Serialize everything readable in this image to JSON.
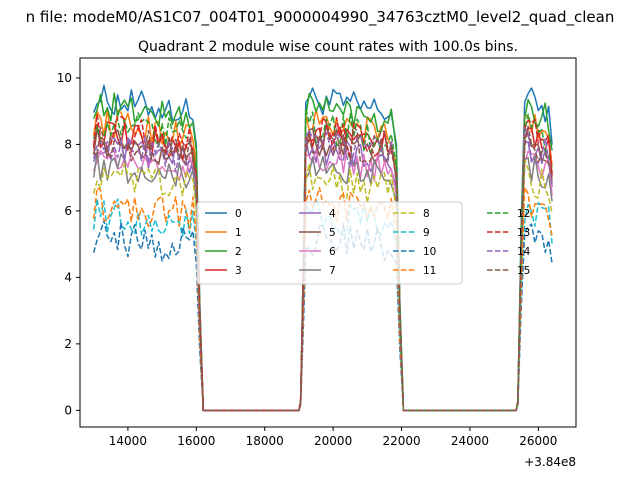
{
  "chart_data": {
    "type": "line",
    "suptitle": "n file: modeM0/AS1C07_004T01_9000004990_34763cztM0_level2_quad_clean",
    "title": "Quadrant 2 module wise count rates with 100.0s bins.",
    "xlabel": "",
    "ylabel": "",
    "x_offset_label": "+3.84e8",
    "xlim": [
      12600,
      27100
    ],
    "ylim": [
      -0.5,
      10.6
    ],
    "xticks": [
      14000,
      16000,
      18000,
      20000,
      22000,
      24000,
      26000
    ],
    "xtick_labels": [
      "14000",
      "16000",
      "18000",
      "20000",
      "22000",
      "24000",
      "26000"
    ],
    "yticks": [
      0,
      2,
      4,
      6,
      8,
      10
    ],
    "ytick_labels": [
      "0",
      "2",
      "4",
      "6",
      "8",
      "10"
    ],
    "grid": false,
    "legend_location": "center",
    "legend_columns": 4,
    "segments": [
      {
        "state": "on",
        "x_start": 13000,
        "x_end": 15900
      },
      {
        "state": "decay",
        "x": [
          16000,
          16100,
          16200
        ]
      },
      {
        "state": "off",
        "x_start": 16200,
        "x_end": 19000,
        "value": 0
      },
      {
        "state": "rise",
        "x": [
          19050,
          19150
        ]
      },
      {
        "state": "on",
        "x_start": 19200,
        "x_end": 21750
      },
      {
        "state": "decay",
        "x": [
          21850,
          21950,
          22050
        ]
      },
      {
        "state": "off",
        "x_start": 22050,
        "x_end": 25350,
        "value": 0
      },
      {
        "state": "rise",
        "x": [
          25400,
          25500
        ]
      },
      {
        "state": "on",
        "x_start": 25600,
        "x_end": 26350
      },
      {
        "state": "decay",
        "x": [
          26400
        ]
      }
    ],
    "series": [
      {
        "name": "0",
        "color": "#1f77b4",
        "dash": "solid",
        "level": 9.4
      },
      {
        "name": "1",
        "color": "#ff7f0e",
        "dash": "solid",
        "level": 8.7
      },
      {
        "name": "2",
        "color": "#2ca02c",
        "dash": "solid",
        "level": 9.2
      },
      {
        "name": "3",
        "color": "#d62728",
        "dash": "solid",
        "level": 8.3
      },
      {
        "name": "4",
        "color": "#9467bd",
        "dash": "solid",
        "level": 7.9
      },
      {
        "name": "5",
        "color": "#8c564b",
        "dash": "solid",
        "level": 8.1
      },
      {
        "name": "6",
        "color": "#e377c2",
        "dash": "solid",
        "level": 7.6
      },
      {
        "name": "7",
        "color": "#7f7f7f",
        "dash": "solid",
        "level": 7.4
      },
      {
        "name": "8",
        "color": "#bcbd22",
        "dash": "dashed",
        "level": 7.0
      },
      {
        "name": "9",
        "color": "#17becf",
        "dash": "dashed",
        "level": 5.9
      },
      {
        "name": "10",
        "color": "#1f77b4",
        "dash": "dashed",
        "level": 5.2
      },
      {
        "name": "11",
        "color": "#ff7f0e",
        "dash": "dashed",
        "level": 6.2
      },
      {
        "name": "12",
        "color": "#2ca02c",
        "dash": "dashed",
        "level": 8.6
      },
      {
        "name": "13",
        "color": "#d62728",
        "dash": "dashed",
        "level": 8.4
      },
      {
        "name": "14",
        "color": "#9467bd",
        "dash": "dashed",
        "level": 8.0
      },
      {
        "name": "15",
        "color": "#8c564b",
        "dash": "dashed",
        "level": 8.2
      }
    ]
  }
}
